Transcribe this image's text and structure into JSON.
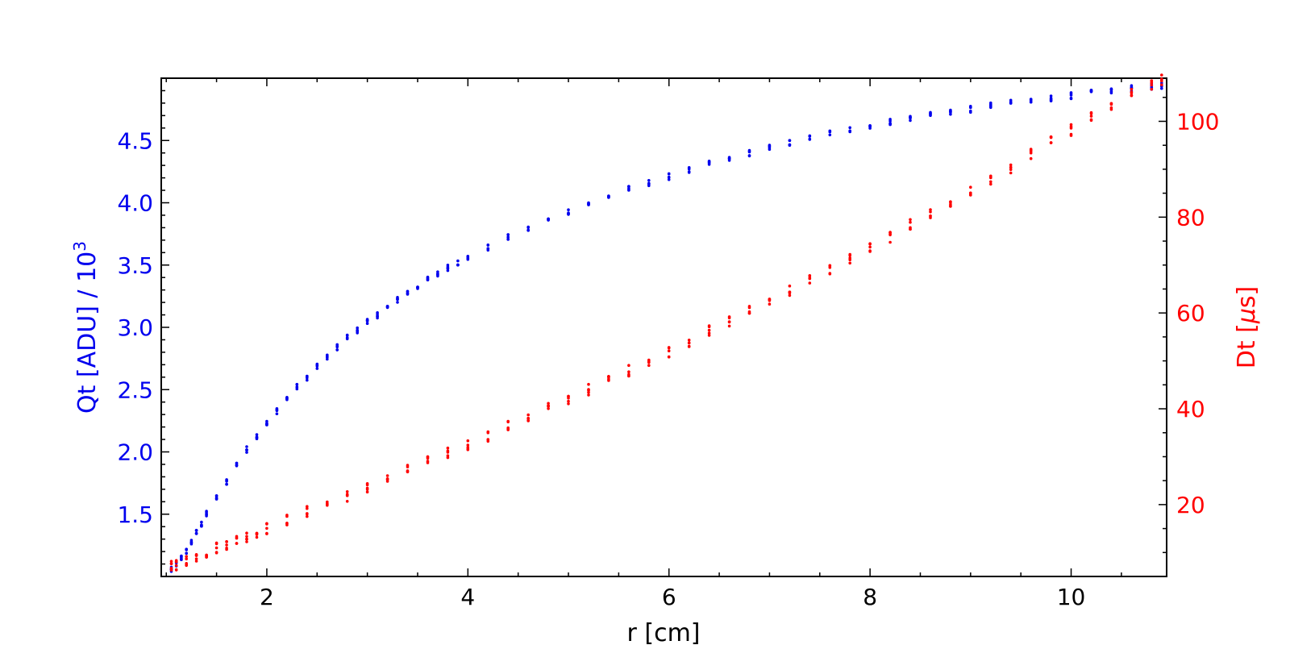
{
  "chart_data": {
    "type": "scatter",
    "title": "",
    "xlabel": "r [cm]",
    "ylabel_left": "Qt [ADU] / 10",
    "ylabel_left_exp": "3",
    "ylabel_right": "Dt [",
    "ylabel_right_mu": "μ",
    "ylabel_right_end": "s]",
    "xlim": [
      0.95,
      10.95
    ],
    "ylim_left": [
      1.0,
      5.0
    ],
    "ylim_right": [
      5,
      109
    ],
    "x_ticks": [
      2,
      4,
      6,
      8,
      10
    ],
    "x_tick_labels": [
      "2",
      "4",
      "6",
      "8",
      "10"
    ],
    "y_left_ticks": [
      1.5,
      2.0,
      2.5,
      3.0,
      3.5,
      4.0,
      4.5
    ],
    "y_left_tick_labels": [
      "1.5",
      "2.0",
      "2.5",
      "3.0",
      "3.5",
      "4.0",
      "4.5"
    ],
    "y_right_ticks": [
      20,
      40,
      60,
      80,
      100
    ],
    "y_right_tick_labels": [
      "20",
      "40",
      "60",
      "80",
      "100"
    ],
    "grid": false,
    "series": [
      {
        "axis": "left",
        "color": "#0000ee",
        "x": [
          1.05,
          1.1,
          1.15,
          1.2,
          1.25,
          1.3,
          1.35,
          1.4,
          1.5,
          1.6,
          1.7,
          1.8,
          1.9,
          2.0,
          2.1,
          2.2,
          2.3,
          2.4,
          2.5,
          2.6,
          2.7,
          2.8,
          2.9,
          3.0,
          3.1,
          3.2,
          3.3,
          3.4,
          3.5,
          3.6,
          3.7,
          3.8,
          3.9,
          4.0,
          4.2,
          4.4,
          4.6,
          4.8,
          5.0,
          5.2,
          5.4,
          5.6,
          5.8,
          6.0,
          6.2,
          6.4,
          6.6,
          6.8,
          7.0,
          7.2,
          7.4,
          7.6,
          7.8,
          8.0,
          8.2,
          8.4,
          8.6,
          8.8,
          9.0,
          9.2,
          9.4,
          9.6,
          9.8,
          10.0,
          10.2,
          10.4,
          10.6,
          10.8,
          10.9
        ],
        "y": [
          1.05,
          1.1,
          1.15,
          1.2,
          1.28,
          1.35,
          1.42,
          1.5,
          1.63,
          1.76,
          1.9,
          2.02,
          2.13,
          2.23,
          2.33,
          2.43,
          2.52,
          2.6,
          2.68,
          2.76,
          2.84,
          2.92,
          2.98,
          3.04,
          3.1,
          3.16,
          3.22,
          3.28,
          3.33,
          3.38,
          3.43,
          3.48,
          3.52,
          3.56,
          3.64,
          3.72,
          3.79,
          3.86,
          3.93,
          3.99,
          4.05,
          4.11,
          4.16,
          4.21,
          4.26,
          4.31,
          4.35,
          4.4,
          4.44,
          4.48,
          4.52,
          4.56,
          4.59,
          4.62,
          4.65,
          4.68,
          4.71,
          4.73,
          4.75,
          4.78,
          4.8,
          4.82,
          4.84,
          4.86,
          4.88,
          4.9,
          4.92,
          4.93,
          4.94
        ]
      },
      {
        "axis": "right",
        "color": "#ff0000",
        "x": [
          1.05,
          1.1,
          1.2,
          1.3,
          1.4,
          1.5,
          1.6,
          1.7,
          1.8,
          1.9,
          2.0,
          2.2,
          2.4,
          2.6,
          2.8,
          3.0,
          3.2,
          3.4,
          3.6,
          3.8,
          4.0,
          4.2,
          4.4,
          4.6,
          4.8,
          5.0,
          5.2,
          5.4,
          5.6,
          5.8,
          6.0,
          6.2,
          6.4,
          6.6,
          6.8,
          7.0,
          7.2,
          7.4,
          7.6,
          7.8,
          8.0,
          8.2,
          8.4,
          8.6,
          8.8,
          9.0,
          9.2,
          9.4,
          9.6,
          9.8,
          10.0,
          10.2,
          10.4,
          10.6,
          10.8,
          10.9
        ],
        "y": [
          7,
          7.5,
          8.3,
          9.2,
          10,
          11,
          11.8,
          12.6,
          13.4,
          14.2,
          15,
          16.8,
          18.5,
          20.2,
          21.8,
          23.5,
          25.3,
          27.1,
          28.9,
          30.7,
          32.5,
          34.4,
          36.3,
          38.2,
          40.1,
          42,
          44,
          46,
          48,
          50,
          52,
          54.1,
          56.2,
          58.3,
          60.4,
          62.6,
          64.8,
          67,
          69.1,
          71.3,
          73.5,
          75.9,
          78.3,
          80.6,
          82.9,
          85.2,
          87.8,
          90.4,
          93,
          95.6,
          98.2,
          100.7,
          103.2,
          105.6,
          107.5,
          108.5
        ]
      }
    ]
  }
}
